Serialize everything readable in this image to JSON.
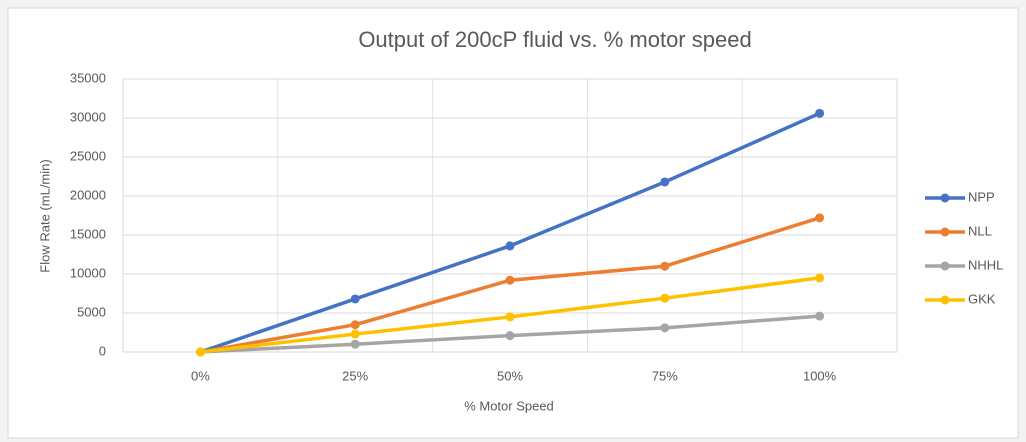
{
  "chart_data": {
    "type": "line",
    "title": "Output of 200cP fluid vs. % motor speed",
    "x_label": "% Motor Speed",
    "y_label": "Flow Rate (mL/min)",
    "categories": [
      "0%",
      "25%",
      "50%",
      "75%",
      "100%"
    ],
    "series": [
      {
        "name": "NPP",
        "color": "#4472c4",
        "values": [
          0,
          6800,
          13600,
          21800,
          30600
        ]
      },
      {
        "name": "NLL",
        "color": "#ed7d31",
        "values": [
          0,
          3500,
          9200,
          11000,
          17200
        ]
      },
      {
        "name": "NHHL",
        "color": "#a5a5a5",
        "values": [
          0,
          1000,
          2100,
          3100,
          4600
        ]
      },
      {
        "name": "GKK",
        "color": "#ffc000",
        "values": [
          0,
          2300,
          4500,
          6900,
          9500
        ]
      }
    ],
    "ylim": [
      0,
      35000
    ],
    "yticks": [
      0,
      5000,
      10000,
      15000,
      20000,
      25000,
      30000,
      35000
    ],
    "grid": true,
    "legend": "right"
  }
}
